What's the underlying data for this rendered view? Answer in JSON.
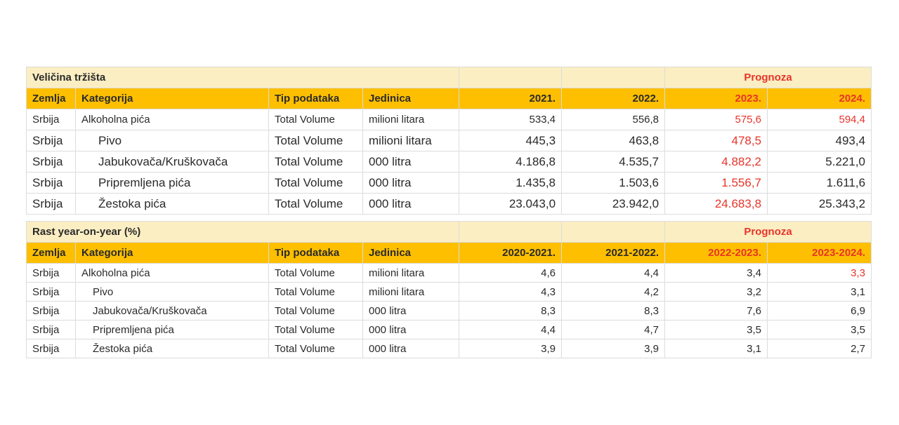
{
  "market_size": {
    "title": "Veličina tržišta",
    "forecast_label": "Prognoza",
    "headers": [
      "Zemlja",
      "Kategorija",
      "Tip podataka",
      "Jedinica",
      "2021.",
      "2022.",
      "2023.",
      "2024."
    ],
    "rows": [
      {
        "country": "Srbija",
        "category": "Alkoholna pića",
        "type": "Total Volume",
        "unit": "milioni litara",
        "v1": "533,4",
        "v2": "556,8",
        "v3": "575,6",
        "v4": "594,4"
      },
      {
        "country": "Srbija",
        "category": "Pivo",
        "type": "Total Volume",
        "unit": "milioni litara",
        "v1": "445,3",
        "v2": "463,8",
        "v3": "478,5",
        "v4": "493,4"
      },
      {
        "country": "Srbija",
        "category": "Jabukovača/Kruškovača",
        "type": "Total Volume",
        "unit": "000 litra",
        "v1": "4.186,8",
        "v2": "4.535,7",
        "v3": "4.882,2",
        "v4": "5.221,0"
      },
      {
        "country": "Srbija",
        "category": "Pripremljena pića",
        "type": "Total Volume",
        "unit": "000 litra",
        "v1": "1.435,8",
        "v2": "1.503,6",
        "v3": "1.556,7",
        "v4": "1.611,6"
      },
      {
        "country": "Srbija",
        "category": "Žestoka pića",
        "type": "Total Volume",
        "unit": "000 litra",
        "v1": "23.043,0",
        "v2": "23.942,0",
        "v3": "24.683,8",
        "v4": "25.343,2"
      }
    ]
  },
  "growth": {
    "title": "Rast year-on-year (%)",
    "forecast_label": "Prognoza",
    "headers": [
      "Zemlja",
      "Kategorija",
      "Tip podataka",
      "Jedinica",
      "2020-2021.",
      "2021-2022.",
      "2022-2023.",
      "2023-2024."
    ],
    "rows": [
      {
        "country": "Srbija",
        "category": "Alkoholna pića",
        "type": "Total Volume",
        "unit": "milioni litara",
        "v1": "4,6",
        "v2": "4,4",
        "v3": "3,4",
        "v4": "3,3"
      },
      {
        "country": "Srbija",
        "category": "Pivo",
        "type": "Total Volume",
        "unit": "milioni litara",
        "v1": "4,3",
        "v2": "4,2",
        "v3": "3,2",
        "v4": "3,1"
      },
      {
        "country": "Srbija",
        "category": "Jabukovača/Kruškovača",
        "type": "Total Volume",
        "unit": "000 litra",
        "v1": "8,3",
        "v2": "8,3",
        "v3": "7,6",
        "v4": "6,9"
      },
      {
        "country": "Srbija",
        "category": "Pripremljena pića",
        "type": "Total Volume",
        "unit": "000 litra",
        "v1": "4,4",
        "v2": "4,7",
        "v3": "3,5",
        "v4": "3,5"
      },
      {
        "country": "Srbija",
        "category": "Žestoka pića",
        "type": "Total Volume",
        "unit": "000 litra",
        "v1": "3,9",
        "v2": "3,9",
        "v3": "3,1",
        "v4": "2,7"
      }
    ]
  },
  "colors": {
    "title_bg": "#fbeec3",
    "header_bg": "#fdbf00",
    "forecast_red": "#e8342a",
    "text": "#2a2a2a"
  }
}
